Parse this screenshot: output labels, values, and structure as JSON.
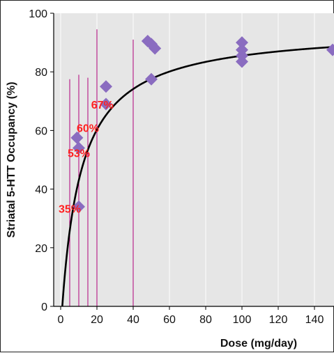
{
  "chart_data": {
    "type": "scatter",
    "xlabel": "Dose (mg/day)",
    "ylabel": "Striatal 5-HTT Occupancy (%)",
    "xlim": [
      0,
      150
    ],
    "ylim": [
      0,
      100
    ],
    "xticks": [
      0,
      20,
      40,
      60,
      80,
      100,
      120,
      140
    ],
    "yticks": [
      0,
      20,
      40,
      60,
      80,
      100
    ],
    "grid": "vertical",
    "colors": {
      "background": "#e6e6e6",
      "grid": "#ffffff",
      "points": "#8a6cc0",
      "curve": "#000000",
      "markers": "#b0007a",
      "annotations": "#ff2020"
    },
    "points": [
      {
        "x": 9,
        "y": 57.5
      },
      {
        "x": 10,
        "y": 54
      },
      {
        "x": 10,
        "y": 34
      },
      {
        "x": 25,
        "y": 75
      },
      {
        "x": 25,
        "y": 69
      },
      {
        "x": 48,
        "y": 90.5
      },
      {
        "x": 50,
        "y": 89.5
      },
      {
        "x": 52,
        "y": 88
      },
      {
        "x": 50,
        "y": 77.5
      },
      {
        "x": 100,
        "y": 90
      },
      {
        "x": 100,
        "y": 87.5
      },
      {
        "x": 100,
        "y": 85.5
      },
      {
        "x": 100,
        "y": 83.5
      },
      {
        "x": 150,
        "y": 87.5
      }
    ],
    "curve": {
      "emax": 95,
      "ed50": 11,
      "x0": 0.9
    },
    "vertical_markers": [
      {
        "x": 5,
        "y_top": 77.5
      },
      {
        "x": 10,
        "y_top": 79
      },
      {
        "x": 15,
        "y_top": 78
      },
      {
        "x": 20,
        "y_top": 94.5
      },
      {
        "x": 40,
        "y_top": 91
      }
    ],
    "annotations": [
      {
        "text": "35%",
        "x": 5,
        "y": 32
      },
      {
        "text": "53%",
        "x": 10,
        "y": 51
      },
      {
        "text": "60%",
        "x": 15,
        "y": 59.5
      },
      {
        "text": "67%",
        "x": 23,
        "y": 67.5
      }
    ]
  }
}
